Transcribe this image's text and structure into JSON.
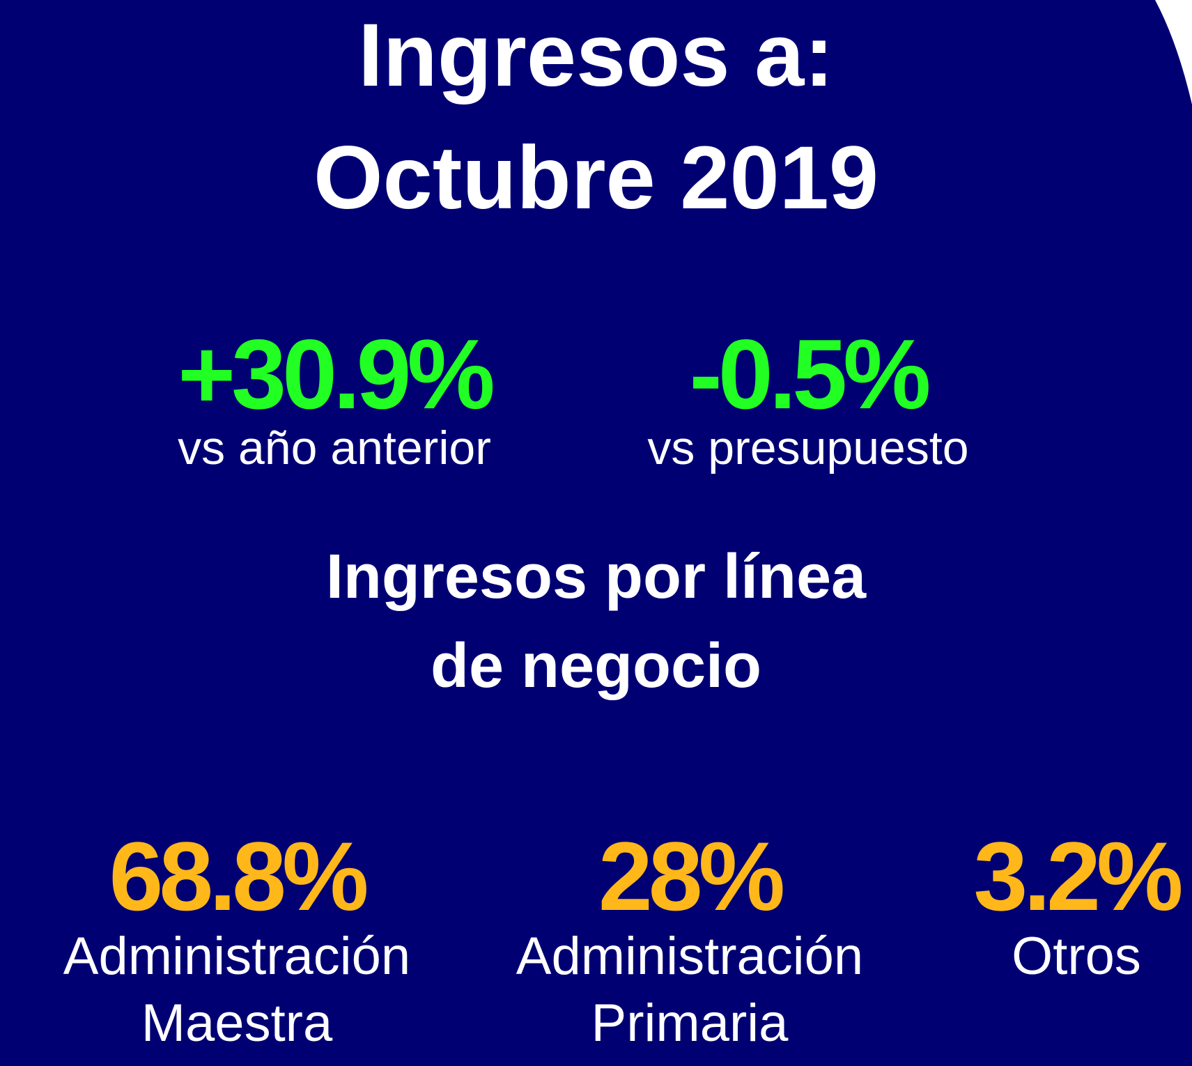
{
  "colors": {
    "background": "#000073",
    "title": "#ffffff",
    "positive_kpi": "#22ff22",
    "segment_kpi": "#ffb719",
    "edge_curve": "#ffffff"
  },
  "title": {
    "line1": "Ingresos a:",
    "line2": "Octubre 2019"
  },
  "kpis": [
    {
      "value": "+30.9%",
      "label": "vs año anterior"
    },
    {
      "value": "-0.5%",
      "label": "vs presupuesto"
    }
  ],
  "subtitle": {
    "line1": "Ingresos por línea",
    "line2": "de negocio"
  },
  "segments": [
    {
      "value": "68.8%",
      "label_line1": "Administración",
      "label_line2": "Maestra"
    },
    {
      "value": "28%",
      "label_line1": "Administración",
      "label_line2": "Primaria"
    },
    {
      "value": "3.2%",
      "label_line1": "Otros",
      "label_line2": ""
    }
  ]
}
